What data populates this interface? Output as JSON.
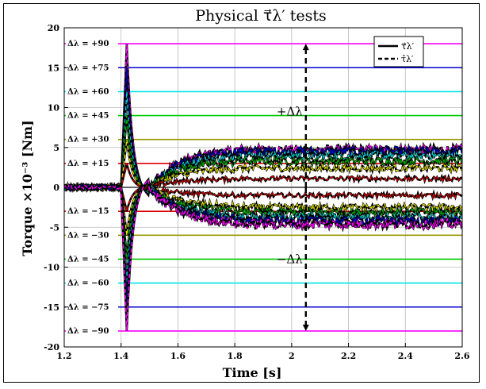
{
  "chart_data": {
    "type": "line",
    "title": "Physical τ⃗λ′ tests",
    "xlabel": "Time [s]",
    "ylabel": "Torque ×10⁻³ [Nm]",
    "xlim": [
      1.2,
      2.6
    ],
    "ylim": [
      -20,
      20
    ],
    "xticks": [
      "1.2",
      "1.4",
      "1.6",
      "1.8",
      "2",
      "2.2",
      "2.4",
      "2.6"
    ],
    "yticks": [
      "20",
      "15",
      "10",
      "5",
      "0",
      "-5",
      "-10",
      "-15",
      "-20"
    ],
    "grid": true,
    "legend_position": "top-right",
    "legend": [
      {
        "label": "τ⃗λ′",
        "style": "solid"
      },
      {
        "label": "τ̂λ′",
        "style": "dashed"
      }
    ],
    "reference_lines": [
      {
        "label": "Δλ = +90",
        "y": 18,
        "color": "#ff00ff"
      },
      {
        "label": "Δλ = +75",
        "y": 15,
        "color": "#0000cc"
      },
      {
        "label": "Δλ = +60",
        "y": 12,
        "color": "#00e5e5"
      },
      {
        "label": "Δλ = +45",
        "y": 9,
        "color": "#00cc00"
      },
      {
        "label": "Δλ = +30",
        "y": 6,
        "color": "#999900"
      },
      {
        "label": "Δλ = +15",
        "y": 3,
        "color": "#dd0000"
      },
      {
        "label": "",
        "y": 0,
        "color": "#333333"
      },
      {
        "label": "Δλ = −15",
        "y": -3,
        "color": "#dd0000"
      },
      {
        "label": "Δλ = −30",
        "y": -6,
        "color": "#999900"
      },
      {
        "label": "Δλ = −45",
        "y": -9,
        "color": "#00cc00"
      },
      {
        "label": "Δλ = −60",
        "y": -12,
        "color": "#00e5e5"
      },
      {
        "label": "Δλ = −75",
        "y": -15,
        "color": "#0000cc"
      },
      {
        "label": "Δλ = −90",
        "y": -18,
        "color": "#ff00ff"
      }
    ],
    "series": [
      {
        "color": "#ff00ff",
        "peak": 18,
        "settle": 4.7
      },
      {
        "color": "#0000cc",
        "peak": 15,
        "settle": 4.5
      },
      {
        "color": "#00cccc",
        "peak": 12,
        "settle": 4.0
      },
      {
        "color": "#00aa00",
        "peak": 9,
        "settle": 3.3
      },
      {
        "color": "#dddd00",
        "peak": 6,
        "settle": 2.4
      },
      {
        "color": "#cc0000",
        "peak": 3,
        "settle": 1.1
      },
      {
        "color": "#cc0000",
        "peak": -3,
        "settle": -1.0
      },
      {
        "color": "#dddd00",
        "peak": -6,
        "settle": -2.5
      },
      {
        "color": "#00aa00",
        "peak": -9,
        "settle": -3.1
      },
      {
        "color": "#00cccc",
        "peak": -12,
        "settle": -3.7
      },
      {
        "color": "#0000cc",
        "peak": -15,
        "settle": -4.2
      },
      {
        "color": "#ff00ff",
        "peak": -18,
        "settle": -4.6
      }
    ],
    "annotations": [
      {
        "text": "+Δλ",
        "x": 2.05,
        "y": 9
      },
      {
        "text": "−Δλ",
        "x": 2.05,
        "y": -9.5
      }
    ],
    "arrow": {
      "x": 2.05,
      "y_from": 0,
      "y_to_top": 18,
      "y_to_bottom": -18
    }
  }
}
